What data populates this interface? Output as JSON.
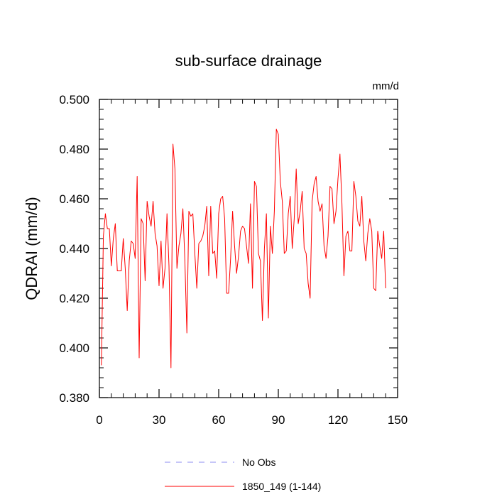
{
  "chart_data": {
    "type": "line",
    "title": "sub-surface drainage",
    "units": "mm/d",
    "xlabel": "",
    "ylabel": "QDRAI  (mm/d)",
    "xlim": [
      0,
      150
    ],
    "ylim": [
      0.38,
      0.5
    ],
    "xticks": [
      0,
      30,
      60,
      90,
      120,
      150
    ],
    "xtick_labels": [
      "0",
      "30",
      "60",
      "90",
      "120",
      "150"
    ],
    "yticks": [
      0.38,
      0.4,
      0.42,
      0.44,
      0.46,
      0.48,
      0.5
    ],
    "ytick_labels": [
      "0.380",
      "0.400",
      "0.420",
      "0.440",
      "0.460",
      "0.480",
      "0.500"
    ],
    "grid": false,
    "legend_position": "bottom",
    "series": [
      {
        "name": "No Obs",
        "color": "#8c8cf2",
        "style": "dashed",
        "x": [],
        "values": []
      },
      {
        "name": "1850_149 (1-144)",
        "color": "#ff0000",
        "style": "solid",
        "x": [
          1,
          2,
          3,
          4,
          5,
          6,
          7,
          8,
          9,
          10,
          11,
          12,
          13,
          14,
          15,
          16,
          17,
          18,
          19,
          20,
          21,
          22,
          23,
          24,
          25,
          26,
          27,
          28,
          29,
          30,
          31,
          32,
          33,
          34,
          35,
          36,
          37,
          38,
          39,
          40,
          41,
          42,
          43,
          44,
          45,
          46,
          47,
          48,
          49,
          50,
          51,
          52,
          53,
          54,
          55,
          56,
          57,
          58,
          59,
          60,
          61,
          62,
          63,
          64,
          65,
          66,
          67,
          68,
          69,
          70,
          71,
          72,
          73,
          74,
          75,
          76,
          77,
          78,
          79,
          80,
          81,
          82,
          83,
          84,
          85,
          86,
          87,
          88,
          89,
          90,
          91,
          92,
          93,
          94,
          95,
          96,
          97,
          98,
          99,
          100,
          101,
          102,
          103,
          104,
          105,
          106,
          107,
          108,
          109,
          110,
          111,
          112,
          113,
          114,
          115,
          116,
          117,
          118,
          119,
          120,
          121,
          122,
          123,
          124,
          125,
          126,
          127,
          128,
          129,
          130,
          131,
          132,
          133,
          134,
          135,
          136,
          137,
          138,
          139,
          140,
          141,
          142,
          143,
          144
        ],
        "values": [
          0.393,
          0.445,
          0.454,
          0.448,
          0.448,
          0.433,
          0.444,
          0.45,
          0.431,
          0.431,
          0.431,
          0.444,
          0.432,
          0.415,
          0.435,
          0.443,
          0.442,
          0.436,
          0.469,
          0.396,
          0.452,
          0.45,
          0.427,
          0.459,
          0.453,
          0.449,
          0.459,
          0.446,
          0.441,
          0.425,
          0.443,
          0.424,
          0.432,
          0.454,
          0.433,
          0.392,
          0.482,
          0.472,
          0.432,
          0.441,
          0.446,
          0.456,
          0.435,
          0.406,
          0.455,
          0.453,
          0.454,
          0.438,
          0.424,
          0.442,
          0.443,
          0.445,
          0.449,
          0.457,
          0.429,
          0.457,
          0.438,
          0.439,
          0.428,
          0.454,
          0.46,
          0.461,
          0.452,
          0.422,
          0.422,
          0.436,
          0.455,
          0.441,
          0.43,
          0.437,
          0.447,
          0.449,
          0.448,
          0.441,
          0.434,
          0.458,
          0.424,
          0.467,
          0.465,
          0.438,
          0.435,
          0.411,
          0.44,
          0.454,
          0.412,
          0.449,
          0.438,
          0.455,
          0.488,
          0.486,
          0.467,
          0.459,
          0.438,
          0.439,
          0.454,
          0.461,
          0.44,
          0.452,
          0.472,
          0.45,
          0.455,
          0.463,
          0.44,
          0.438,
          0.426,
          0.42,
          0.459,
          0.466,
          0.469,
          0.459,
          0.455,
          0.458,
          0.441,
          0.436,
          0.445,
          0.465,
          0.464,
          0.45,
          0.455,
          0.468,
          0.478,
          0.458,
          0.429,
          0.445,
          0.447,
          0.439,
          0.439,
          0.467,
          0.461,
          0.451,
          0.449,
          0.461,
          0.443,
          0.435,
          0.446,
          0.452,
          0.447,
          0.424,
          0.423,
          0.447,
          0.441,
          0.436,
          0.447,
          0.424
        ]
      }
    ]
  }
}
